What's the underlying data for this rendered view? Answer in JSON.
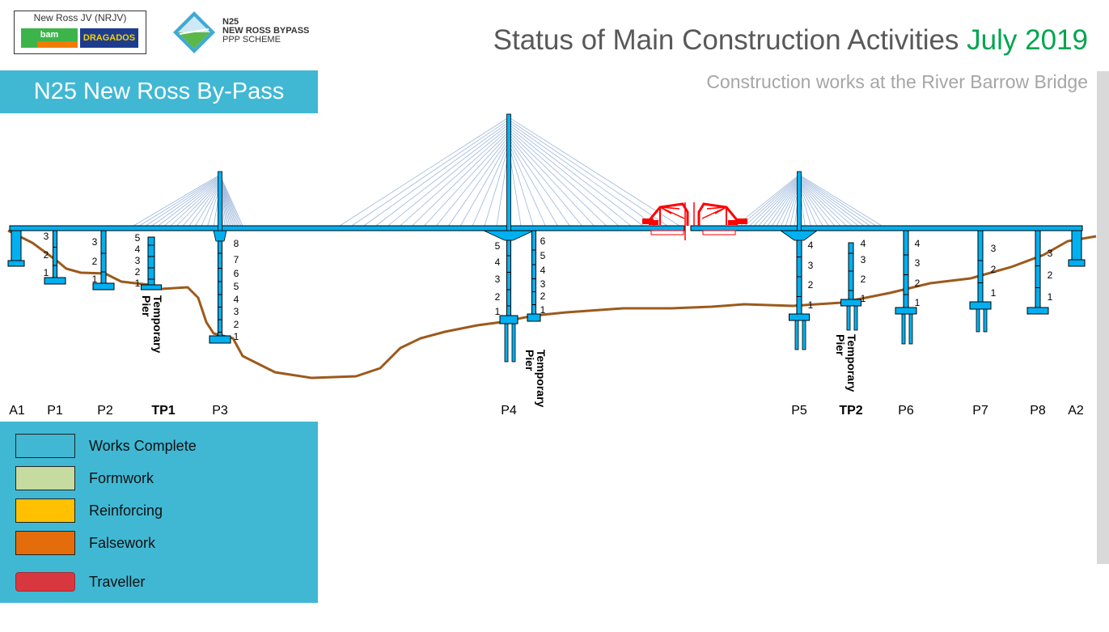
{
  "logos": {
    "jv": {
      "title": "New Ross JV (NRJV)",
      "bam": "bam",
      "dragados": "DRAGADOS"
    },
    "scheme": {
      "line1": "N25",
      "line2": "NEW ROSS BYPASS",
      "line3": "PPP SCHEME"
    }
  },
  "header": {
    "title": "Status of Main Construction Activities",
    "month": "July 2019",
    "subtitle": "Construction works at the River Barrow Bridge",
    "banner": "N25 New Ross By-Pass"
  },
  "colors": {
    "complete": "#00b0f0",
    "formwork": "#c6dba0",
    "reinforcing": "#ffc000",
    "falsework": "#e46c0a",
    "traveller": "#ff0000",
    "ground": "#9c5a1c",
    "title_accent": "#00a550",
    "panel": "#40b8d4"
  },
  "temporary_label": [
    "Temporary",
    "Pier"
  ],
  "piers": [
    {
      "id": "A1",
      "label": "A1",
      "bold": false,
      "segments": []
    },
    {
      "id": "P1",
      "label": "P1",
      "bold": false,
      "segments": [
        "3",
        "2",
        "1"
      ]
    },
    {
      "id": "P2",
      "label": "P2",
      "bold": false,
      "segments": [
        "3",
        "2",
        "1"
      ]
    },
    {
      "id": "TP1",
      "label": "TP1",
      "bold": true,
      "segments": [
        "5",
        "4",
        "3",
        "2",
        "1"
      ]
    },
    {
      "id": "P3",
      "label": "P3",
      "bold": false,
      "segments": [
        "8",
        "7",
        "6",
        "5",
        "4",
        "3",
        "2",
        "1"
      ]
    },
    {
      "id": "P4",
      "label": "P4",
      "bold": false,
      "segments": [
        "5",
        "4",
        "3",
        "2",
        "1"
      ]
    },
    {
      "id": "P4T",
      "label": "",
      "bold": false,
      "segments": [
        "6",
        "5",
        "4",
        "3",
        "2",
        "1"
      ]
    },
    {
      "id": "P5",
      "label": "P5",
      "bold": false,
      "segments": [
        "4",
        "3",
        "2",
        "1"
      ]
    },
    {
      "id": "TP2",
      "label": "TP2",
      "bold": true,
      "segments": [
        "4",
        "3",
        "2",
        "1"
      ]
    },
    {
      "id": "P6",
      "label": "P6",
      "bold": false,
      "segments": [
        "4",
        "3",
        "2",
        "1"
      ]
    },
    {
      "id": "P7",
      "label": "P7",
      "bold": false,
      "segments": [
        "3",
        "2",
        "1"
      ]
    },
    {
      "id": "P8",
      "label": "P8",
      "bold": false,
      "segments": [
        "3",
        "2",
        "1"
      ]
    },
    {
      "id": "A2",
      "label": "A2",
      "bold": false,
      "segments": []
    }
  ],
  "legend": [
    {
      "label": "Works Complete",
      "color": "#40b8d4"
    },
    {
      "label": "Formwork",
      "color": "#c6dba0"
    },
    {
      "label": "Reinforcing",
      "color": "#ffc000"
    },
    {
      "label": "Falsework",
      "color": "#e46c0a"
    },
    {
      "label": "Traveller",
      "color": "#d9373f"
    }
  ]
}
